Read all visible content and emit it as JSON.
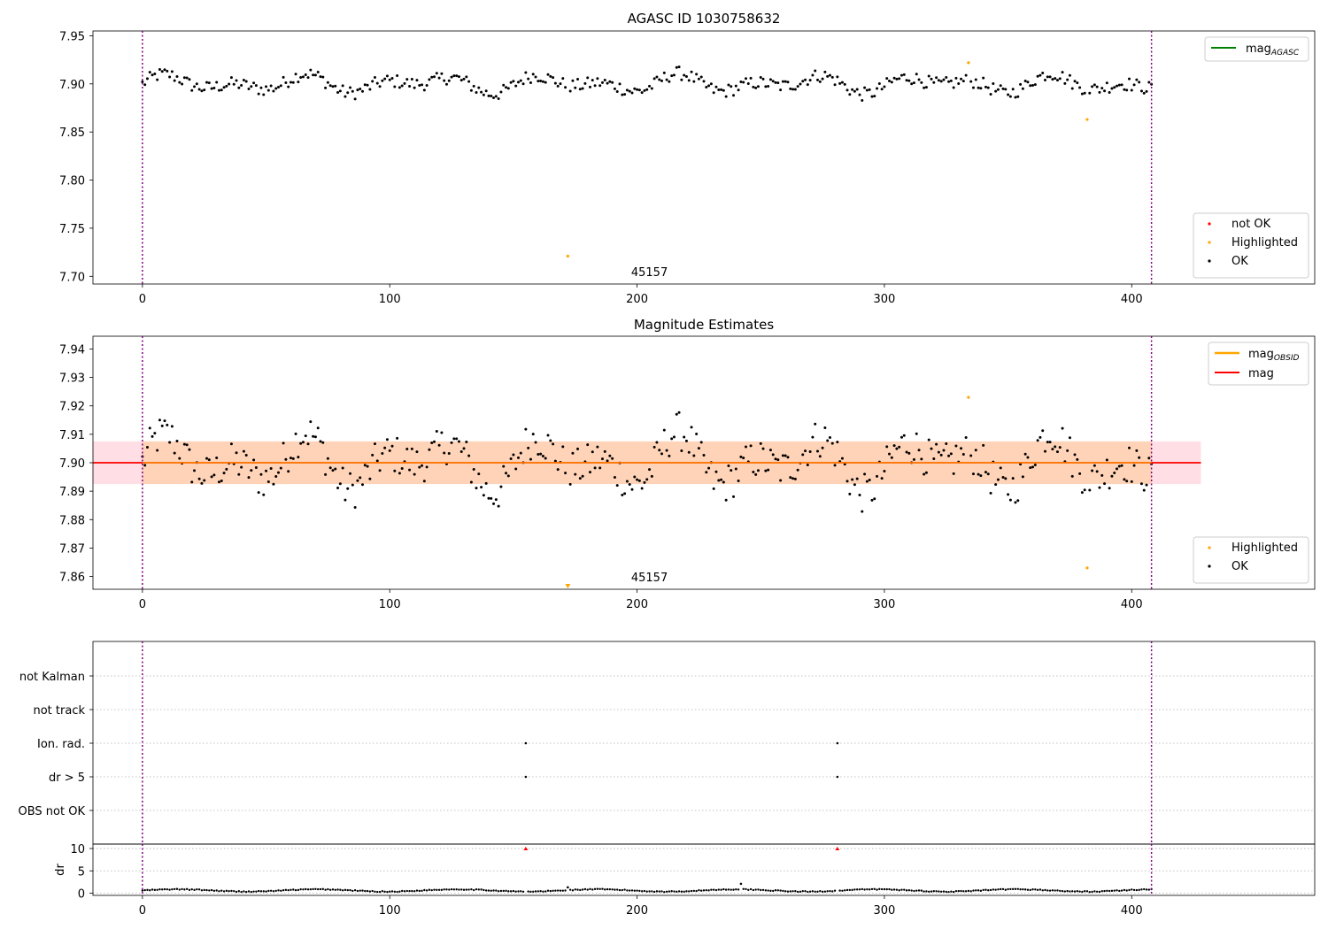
{
  "chart_data": [
    {
      "type": "scatter",
      "title": "AGASC ID 1030758632",
      "annotation": "45157",
      "xlim": [
        -20,
        474
      ],
      "ylim": [
        7.692,
        7.955
      ],
      "x_ticks": [
        0,
        100,
        200,
        300,
        400
      ],
      "y_ticks": [
        7.7,
        7.75,
        7.8,
        7.85,
        7.9,
        7.95
      ],
      "y_tick_labels": [
        "7.70",
        "7.75",
        "7.80",
        "7.85",
        "7.90",
        "7.95"
      ],
      "obsid_boundaries": [
        0,
        408
      ],
      "legend_upper": [
        {
          "label": "mag",
          "sub": "AGASC",
          "color": "#008000"
        }
      ],
      "legend_lower": [
        {
          "label": "not OK",
          "color": "#ff0000"
        },
        {
          "label": "Highlighted",
          "color": "#ffa500"
        },
        {
          "label": "OK",
          "color": "#000000"
        }
      ],
      "highlighted_points": [
        [
          172,
          7.721
        ],
        [
          334,
          7.922
        ],
        [
          382,
          7.863
        ]
      ],
      "mag_agasc": 7.9
    },
    {
      "type": "scatter",
      "title": "Magnitude Estimates",
      "annotation": "45157",
      "xlim": [
        -20,
        474
      ],
      "ylim": [
        7.8555,
        7.9445
      ],
      "x_ticks": [
        0,
        100,
        200,
        300,
        400
      ],
      "y_ticks": [
        7.86,
        7.87,
        7.88,
        7.89,
        7.9,
        7.91,
        7.92,
        7.93,
        7.94
      ],
      "y_tick_labels": [
        "7.86",
        "7.87",
        "7.88",
        "7.89",
        "7.90",
        "7.91",
        "7.92",
        "7.93",
        "7.94"
      ],
      "obsid_boundaries": [
        0,
        408
      ],
      "legend_upper": [
        {
          "label": "mag",
          "sub": "OBSID",
          "color": "#ffa500"
        },
        {
          "label": "mag",
          "color": "#ff0000"
        }
      ],
      "legend_lower": [
        {
          "label": "Highlighted",
          "color": "#ffa500"
        },
        {
          "label": "OK",
          "color": "#000000"
        }
      ],
      "mag": 7.9,
      "mag_band": [
        7.8925,
        7.9075
      ],
      "mag_band_xlim": [
        -20,
        428
      ],
      "highlighted_points": [
        [
          334,
          7.923
        ],
        [
          382,
          7.863
        ]
      ],
      "below_range_markers": [
        172
      ]
    },
    {
      "type": "scatter",
      "title": "",
      "xlim": [
        -20,
        474
      ],
      "categories": [
        "not Kalman",
        "not track",
        "Ion. rad.",
        "dr > 5",
        "OBS not OK"
      ],
      "obsid_boundaries": [
        0,
        408
      ],
      "flag_points": [
        {
          "category": "Ion. rad.",
          "x": [
            155,
            281
          ]
        },
        {
          "category": "dr > 5",
          "x": [
            155,
            281
          ]
        }
      ]
    },
    {
      "type": "scatter",
      "title": "",
      "ylabel": "dr",
      "xlim": [
        -20,
        474
      ],
      "ylim": [
        -0.5,
        11
      ],
      "y_ticks": [
        0,
        5,
        10
      ],
      "y_tick_labels": [
        "0",
        "5",
        "10"
      ],
      "x_ticks": [
        0,
        100,
        200,
        300,
        400
      ],
      "obsid_boundaries": [
        0,
        408
      ],
      "clipped_points": [
        [
          155,
          10
        ],
        [
          281,
          10
        ]
      ],
      "outlier_points": [
        [
          172,
          1.3
        ],
        [
          242,
          2.1
        ]
      ],
      "dr_typical": 0.5
    }
  ]
}
